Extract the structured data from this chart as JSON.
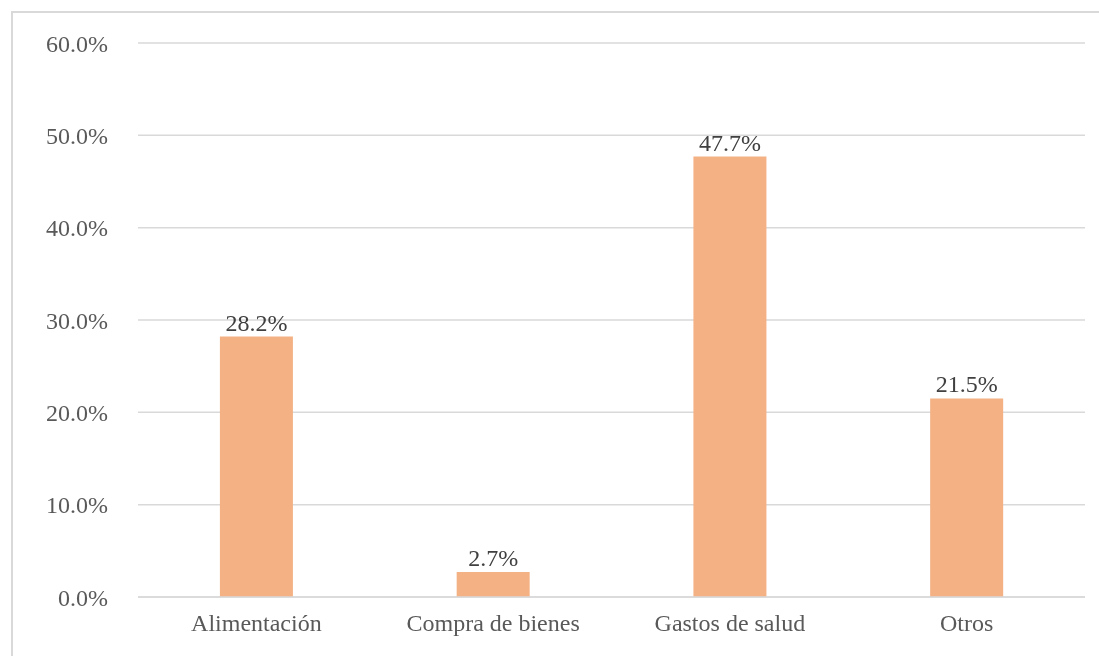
{
  "chart_data": {
    "type": "bar",
    "categories": [
      "Alimentación",
      "Compra de bienes",
      "Gastos de salud",
      "Otros"
    ],
    "values": [
      28.2,
      2.7,
      47.7,
      21.5
    ],
    "value_labels": [
      "28.2%",
      "2.7%",
      "47.7%",
      "21.5%"
    ],
    "color": "#f4b183",
    "ylim": [
      0,
      60
    ],
    "yticks": [
      {
        "value": 0,
        "label": "0.0%"
      },
      {
        "value": 10,
        "label": "10.0%"
      },
      {
        "value": 20,
        "label": "20.0%"
      },
      {
        "value": 30,
        "label": "30.0%"
      },
      {
        "value": 40,
        "label": "40.0%"
      },
      {
        "value": 50,
        "label": "50.0%"
      },
      {
        "value": 60,
        "label": "60.0%"
      }
    ],
    "grid": "y"
  }
}
